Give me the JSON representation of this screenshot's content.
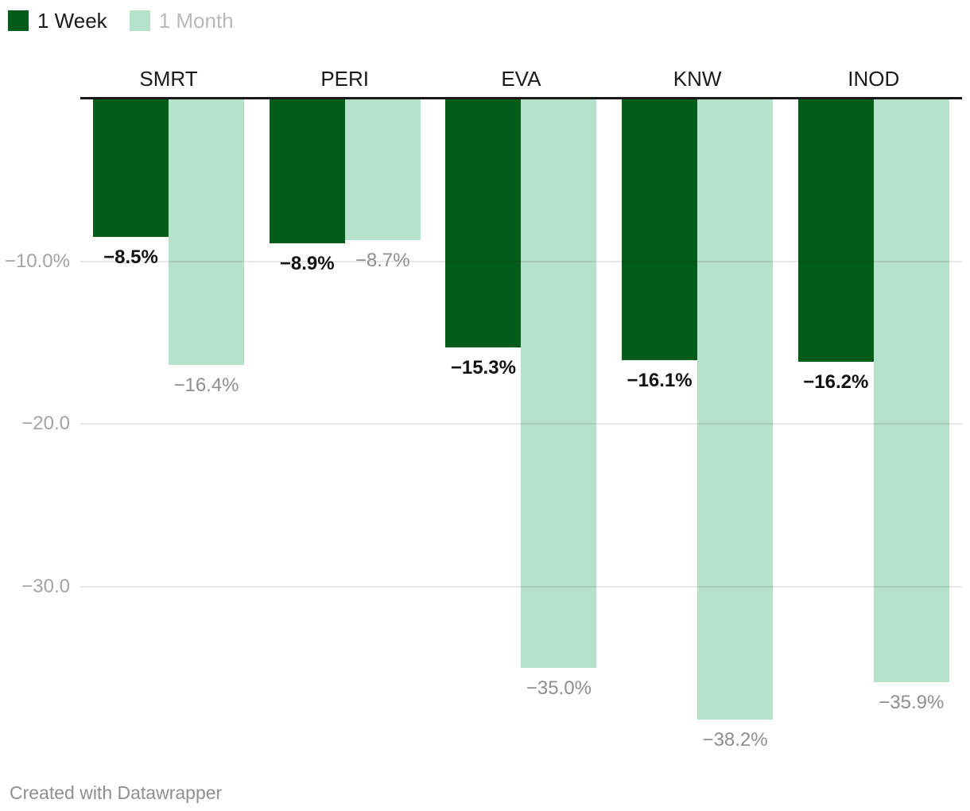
{
  "legend": {
    "items": [
      {
        "label": "1 Week",
        "swatch_color": "#035c19",
        "label_color": "#1a1a1a"
      },
      {
        "label": "1 Month",
        "swatch_color": "#b5e2cb",
        "label_color": "#b9b9b9"
      }
    ]
  },
  "chart_data": {
    "type": "bar",
    "title": "",
    "categories": [
      "SMRT",
      "PERI",
      "EVA",
      "KNW",
      "INOD"
    ],
    "series": [
      {
        "name": "1 Week",
        "color": "#035c19",
        "values": [
          -8.5,
          -8.9,
          -15.3,
          -16.1,
          -16.2
        ],
        "value_labels": [
          "−8.5%",
          "−8.9%",
          "−15.3%",
          "−16.1%",
          "−16.2%"
        ]
      },
      {
        "name": "1 Month",
        "color": "#b5e2cb",
        "values": [
          -16.4,
          -8.7,
          -35.0,
          -38.2,
          -35.9
        ],
        "value_labels": [
          "−16.4%",
          "−8.7%",
          "−35.0%",
          "−38.2%",
          "−35.9%"
        ]
      }
    ],
    "y_axis": {
      "unit": "%",
      "ylim": [
        -44,
        0
      ],
      "ticks": [
        {
          "value": -10,
          "label": "−10.0%"
        },
        {
          "value": -20,
          "label": "−20.0"
        },
        {
          "value": -30,
          "label": "−30.0"
        }
      ]
    },
    "grid": true,
    "legend_position": "top-left",
    "xlabel": "",
    "ylabel": ""
  },
  "footer": {
    "text": "Created with Datawrapper"
  },
  "colors": {
    "background": "#ffffff",
    "axis_line": "#18181a",
    "gridline": "#e8e8e8",
    "tick_label": "#a4a4a4",
    "header_label": "#1a1a1a",
    "bold_value_label": "#111111",
    "gray_value_label": "#8f8f8f",
    "footer_text": "#909090"
  }
}
